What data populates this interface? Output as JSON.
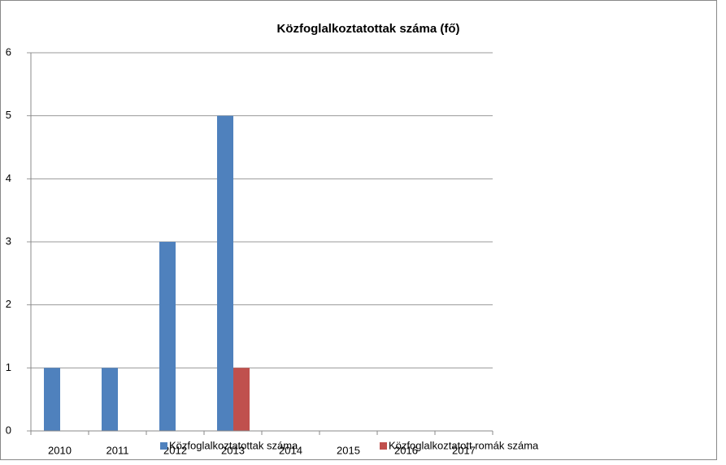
{
  "chart_data": {
    "type": "bar",
    "title": "Közfoglalkoztatottak száma (fő)",
    "categories": [
      "2010",
      "2011",
      "2012",
      "2013",
      "2014",
      "2015",
      "2016",
      "2017"
    ],
    "series": [
      {
        "name": "Közfoglalkoztatottak száma",
        "color": "#4f81bd",
        "values": [
          1,
          1,
          3,
          5,
          0,
          0,
          0,
          0
        ]
      },
      {
        "name": "Közfoglalkoztatott romák száma",
        "color": "#c0504d",
        "values": [
          0,
          0,
          0,
          1,
          0,
          0,
          0,
          0
        ]
      }
    ],
    "ylim": [
      0,
      6
    ],
    "yticks": [
      0,
      1,
      2,
      3,
      4,
      5,
      6
    ],
    "grid": true,
    "legend": "bottom"
  }
}
